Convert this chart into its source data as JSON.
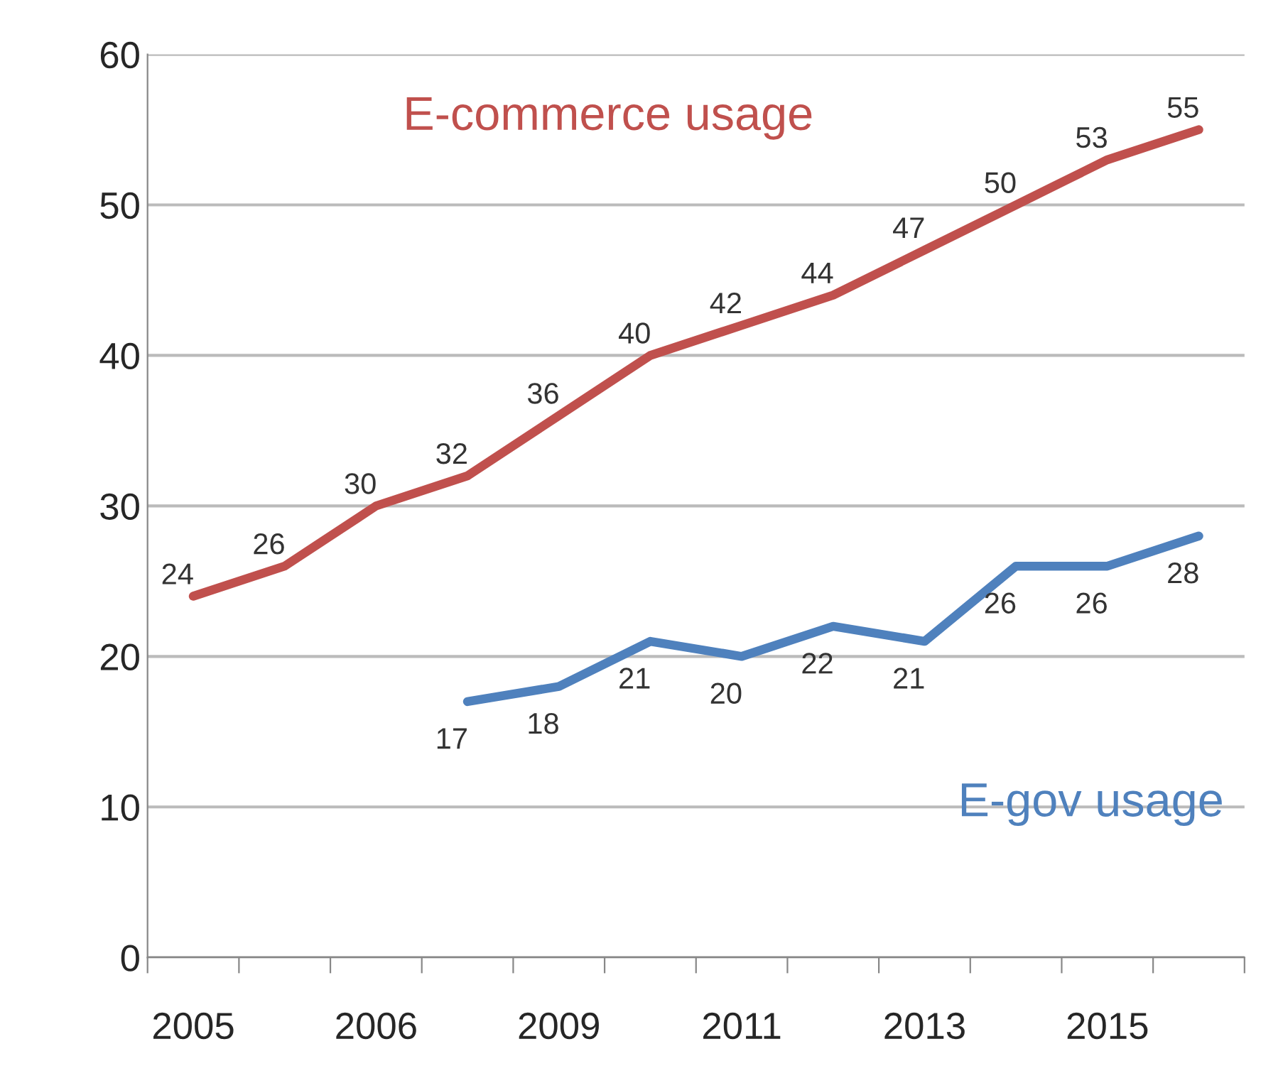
{
  "chart_data": {
    "type": "line",
    "categories": [
      "2005",
      null,
      "2006",
      null,
      "2009",
      null,
      "2011",
      null,
      "2013",
      null,
      "2015",
      null
    ],
    "series": [
      {
        "name": "E-commerce usage",
        "color": "#c0504d",
        "values": [
          24,
          26,
          30,
          32,
          36,
          40,
          42,
          44,
          47,
          50,
          53,
          55
        ]
      },
      {
        "name": "E-gov usage",
        "color": "#4f81bd",
        "values": [
          null,
          null,
          null,
          17,
          18,
          21,
          20,
          22,
          21,
          26,
          26,
          28
        ]
      }
    ],
    "ylim": [
      0,
      60
    ],
    "yticks": [
      0,
      10,
      20,
      30,
      40,
      50,
      60
    ],
    "grid": "y",
    "data_labels": true,
    "legend": false,
    "marker": "none",
    "line_style": "solid"
  }
}
